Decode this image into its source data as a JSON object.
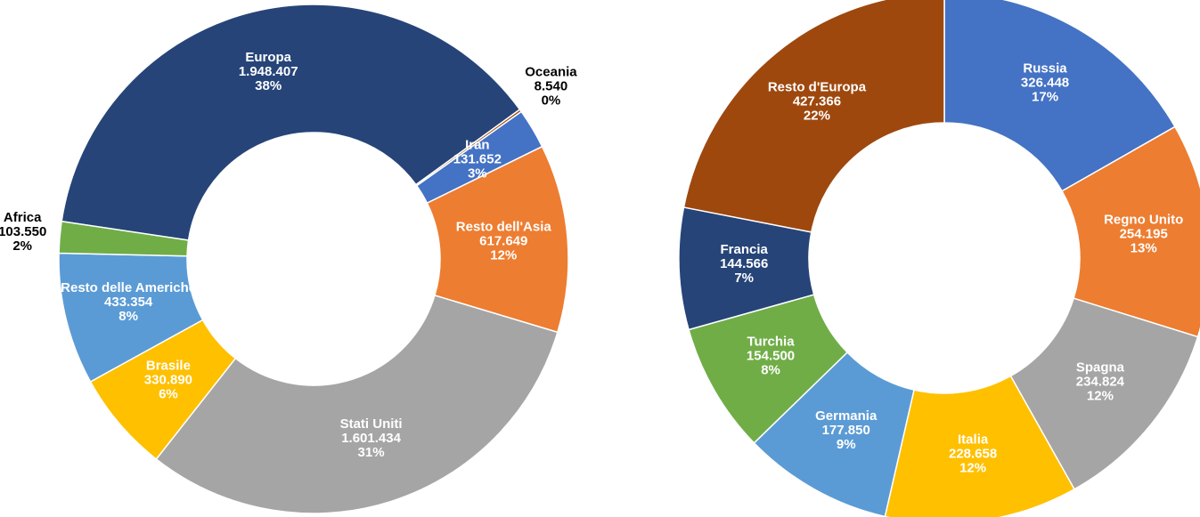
{
  "chart_data": [
    {
      "type": "donut",
      "categories": [
        "Europa",
        "Oceania",
        "Iran",
        "Resto dell'Asia",
        "Stati Uniti",
        "Brasile",
        "Resto delle Americhe",
        "Africa"
      ],
      "values": [
        1948407,
        8540,
        131652,
        617649,
        1601434,
        330890,
        433354,
        103550
      ],
      "value_labels": [
        "1.948.407",
        "8.540",
        "131.652",
        "617.649",
        "1.601.434",
        "330.890",
        "433.354",
        "103.550"
      ],
      "percent_labels": [
        "38%",
        "0%",
        "3%",
        "12%",
        "31%",
        "6%",
        "8%",
        "2%"
      ],
      "colors": [
        "#264478",
        "#9e480e",
        "#4472c4",
        "#ed7d31",
        "#a5a5a5",
        "#ffc000",
        "#5b9bd5",
        "#70ad47"
      ]
    },
    {
      "type": "donut",
      "categories": [
        "Russia",
        "Regno Unito",
        "Spagna",
        "Italia",
        "Germania",
        "Turchia",
        "Francia",
        "Resto d'Europa"
      ],
      "values": [
        326448,
        254195,
        234824,
        228658,
        177850,
        154500,
        144566,
        427366
      ],
      "value_labels": [
        "326.448",
        "254.195",
        "234.824",
        "228.658",
        "177.850",
        "154.500",
        "144.566",
        "427.366"
      ],
      "percent_labels": [
        "17%",
        "13%",
        "12%",
        "12%",
        "9%",
        "8%",
        "7%",
        "22%"
      ],
      "colors": [
        "#4472c4",
        "#ed7d31",
        "#a5a5a5",
        "#ffc000",
        "#5b9bd5",
        "#70ad47",
        "#264478",
        "#9e480e"
      ]
    }
  ]
}
